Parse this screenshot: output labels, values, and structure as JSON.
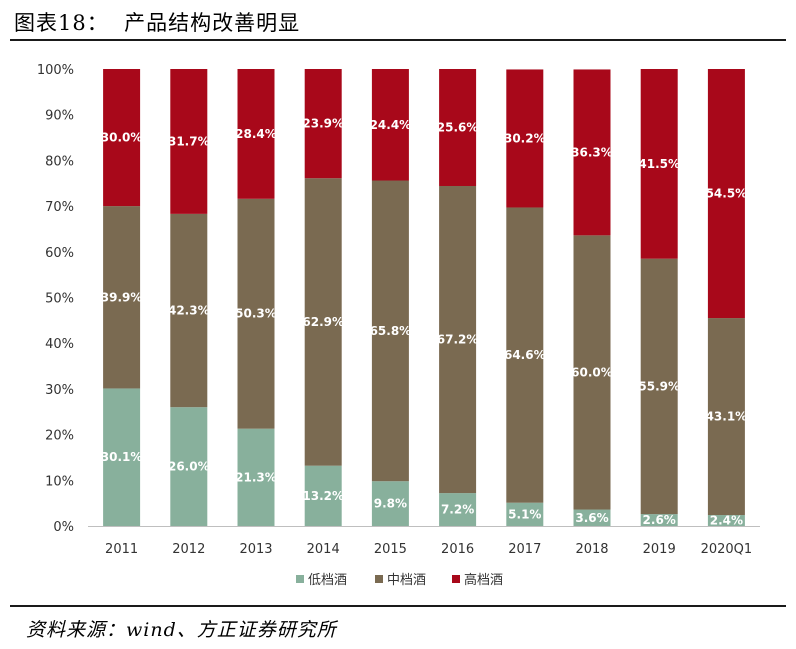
{
  "title": "图表18：  产品结构改善明显",
  "source": "资料来源：wind、方正证券研究所",
  "chart_data": {
    "type": "bar",
    "stacked": true,
    "categories": [
      "2011",
      "2012",
      "2013",
      "2014",
      "2015",
      "2016",
      "2017",
      "2018",
      "2019",
      "2020Q1"
    ],
    "series": [
      {
        "name": "低档酒",
        "color": "#88b09c",
        "values": [
          30.1,
          26.0,
          21.3,
          13.2,
          9.8,
          7.2,
          5.1,
          3.6,
          2.6,
          2.4
        ],
        "labels": [
          "30.1%",
          "26.0%",
          "21.3%",
          "13.2%",
          "9.8%",
          "7.2%",
          "5.1%",
          "3.6%",
          "2.6%",
          "2.4%"
        ]
      },
      {
        "name": "中档酒",
        "color": "#7a6a51",
        "values": [
          39.9,
          42.3,
          50.3,
          62.9,
          65.8,
          67.2,
          64.6,
          60.0,
          55.9,
          43.1
        ],
        "labels": [
          "39.9%",
          "42.3%",
          "50.3%",
          "62.9%",
          "65.8%",
          "67.2%",
          "64.6%",
          "60.0%",
          "55.9%",
          "43.1%"
        ]
      },
      {
        "name": "高档酒",
        "color": "#a8081a",
        "values": [
          30.0,
          31.7,
          28.4,
          23.9,
          24.4,
          25.6,
          30.2,
          36.3,
          41.5,
          54.5
        ],
        "labels": [
          "30.0%",
          "31.7%",
          "28.4%",
          "23.9%",
          "24.4%",
          "25.6%",
          "30.2%",
          "36.3%",
          "41.5%",
          "54.5%"
        ]
      }
    ],
    "ylim": [
      0,
      100
    ],
    "yticks": [
      "0%",
      "10%",
      "20%",
      "30%",
      "40%",
      "50%",
      "60%",
      "70%",
      "80%",
      "90%",
      "100%"
    ],
    "legend_position": "bottom",
    "grid": false
  }
}
